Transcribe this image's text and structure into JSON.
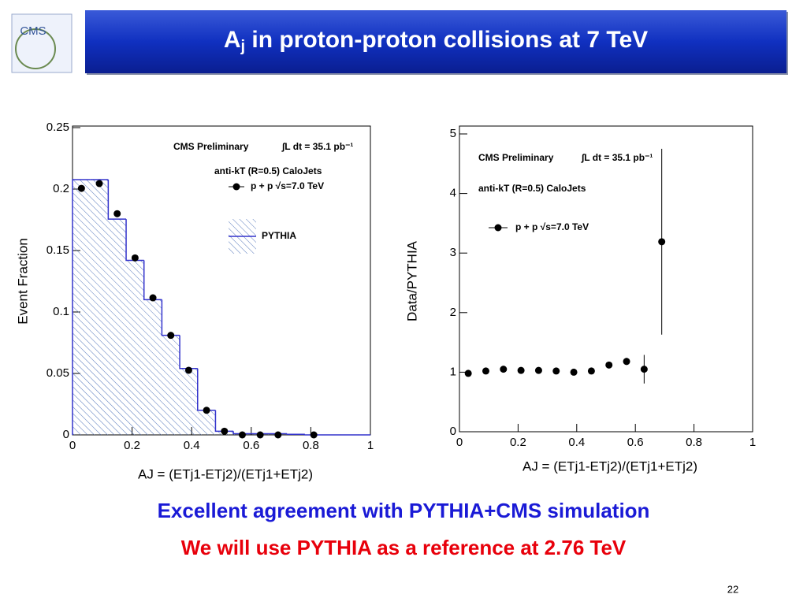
{
  "slide": {
    "title_parts": [
      "A",
      "j",
      " in proton-proton collisions at 7 TeV"
    ],
    "logo_text": "CMS",
    "line1": "Excellent agreement with PYTHIA+CMS simulation",
    "line2": "We will use PYTHIA as a reference at 2.76 TeV",
    "page_number": "22"
  },
  "chart_data": [
    {
      "type": "histogram",
      "ylabel": "Event Fraction",
      "xlabel": "AJ = (ETj1-ETj2)/(ETj1+ETj2)",
      "annotations": [
        "CMS Preliminary",
        "∫L dt = 35.1 pb⁻¹",
        "anti-kT (R=0.5) CaloJets"
      ],
      "bins": [
        0,
        0.06,
        0.12,
        0.18,
        0.24,
        0.3,
        0.36,
        0.42,
        0.48,
        0.54,
        0.6,
        0.66,
        0.72,
        0.78,
        0.84,
        0.9,
        0.96,
        1.0
      ],
      "series": [
        {
          "name": "PYTHIA",
          "color": "#3333cc",
          "values": [
            0.2077,
            0.2077,
            0.1756,
            0.142,
            0.11,
            0.081,
            0.054,
            0.02,
            0.003,
            0.001,
            0.001,
            0.001,
            0.0005,
            0,
            0,
            0,
            0
          ]
        }
      ],
      "points": {
        "name": "p + p √s=7.0 TeV",
        "color": "#000000",
        "x": [
          0.03,
          0.09,
          0.15,
          0.21,
          0.27,
          0.33,
          0.39,
          0.45,
          0.51,
          0.57,
          0.63,
          0.69,
          0.81
        ],
        "values": [
          0.2006,
          0.2045,
          0.18,
          0.144,
          0.1115,
          0.081,
          0.0526,
          0.02,
          0.003,
          0,
          0,
          0,
          0
        ]
      },
      "xlim": [
        0,
        1
      ],
      "ylim": [
        0,
        0.25
      ],
      "xticks": [
        0,
        0.2,
        0.4,
        0.6,
        0.8,
        1
      ],
      "yticks": [
        0,
        0.05,
        0.1,
        0.15,
        0.2,
        0.25
      ]
    },
    {
      "type": "scatter",
      "ylabel": "Data/PYTHIA",
      "xlabel": "AJ = (ETj1-ETj2)/(ETj1+ETj2)",
      "annotations": [
        "CMS Preliminary",
        "∫L dt = 35.1 pb⁻¹",
        "anti-kT (R=0.5) CaloJets"
      ],
      "series": [
        {
          "name": "p + p √s=7.0 TeV",
          "color": "#000000",
          "x": [
            0.03,
            0.09,
            0.15,
            0.21,
            0.27,
            0.33,
            0.39,
            0.45,
            0.51,
            0.57,
            0.63,
            0.69
          ],
          "values": [
            0.98,
            1.02,
            1.05,
            1.03,
            1.03,
            1.02,
            1.0,
            1.02,
            1.12,
            1.18,
            1.05,
            3.19
          ],
          "errors": [
            0.03,
            0.03,
            0.03,
            0.03,
            0.03,
            0.03,
            0.03,
            0.03,
            0.04,
            0.06,
            0.24,
            1.56
          ]
        }
      ],
      "xlim": [
        0,
        1
      ],
      "ylim": [
        0,
        5
      ],
      "xticks": [
        0,
        0.2,
        0.4,
        0.6,
        0.8,
        1
      ],
      "yticks": [
        0,
        1,
        2,
        3,
        4,
        5
      ]
    }
  ]
}
